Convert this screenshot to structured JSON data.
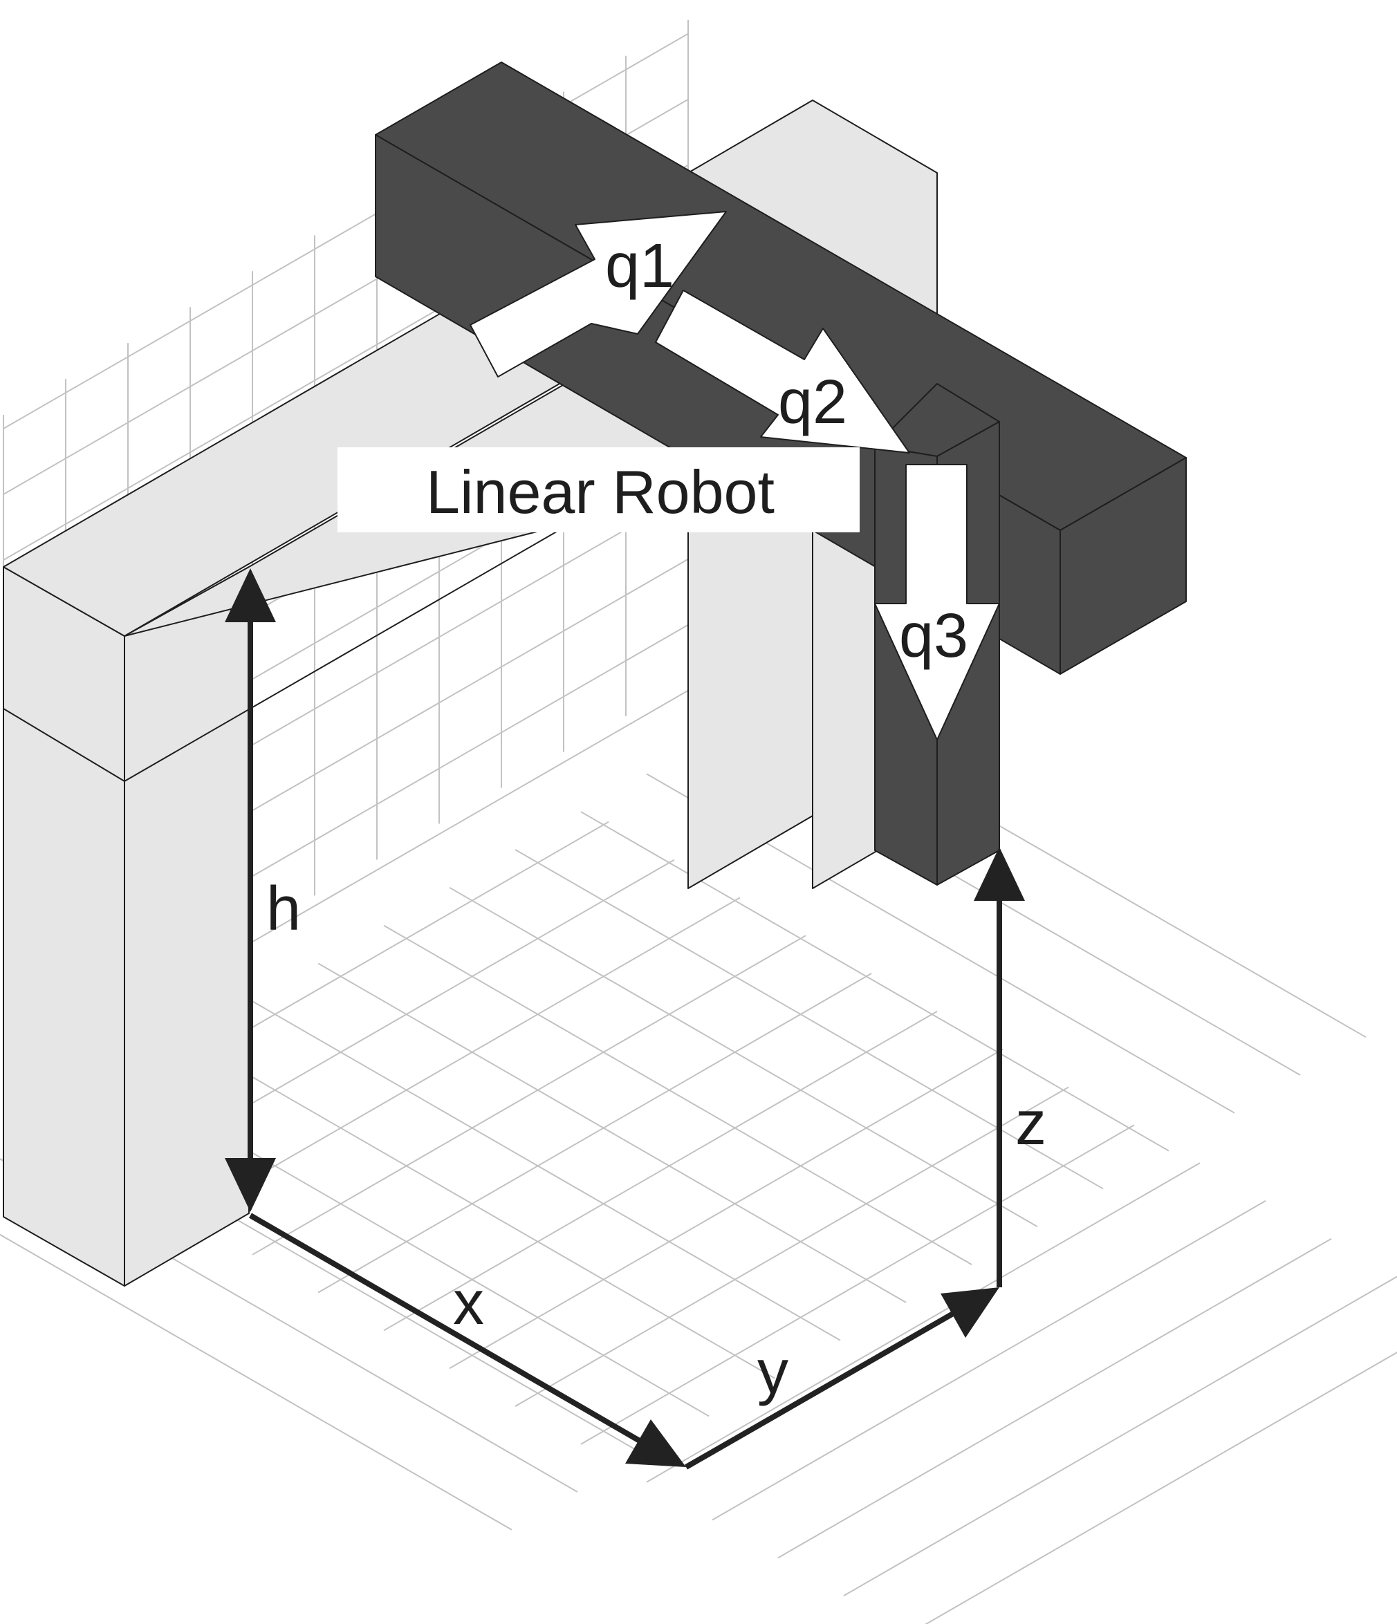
{
  "title": "Linear Robot",
  "joints": {
    "q1": "q1",
    "q2": "q2",
    "q3": "q3"
  },
  "dimensions": {
    "h": "h",
    "x": "x",
    "y": "y",
    "z": "z"
  },
  "colors": {
    "frame": "#e6e6e6",
    "robot": "#4a4a4a",
    "grid": "#c2c2c2",
    "outline": "#1e1e1e",
    "axis": "#222222"
  }
}
